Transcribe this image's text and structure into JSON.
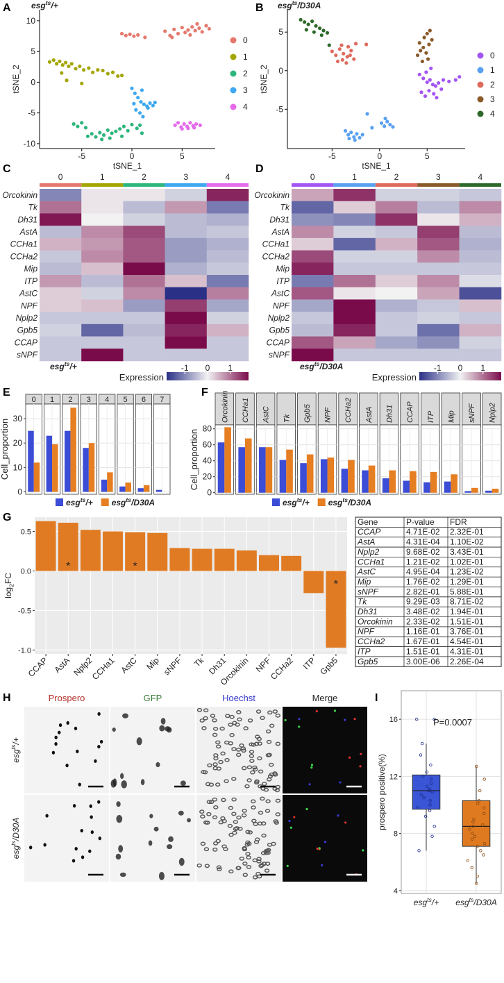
{
  "panel_labels": [
    "A",
    "B",
    "C",
    "D",
    "E",
    "F",
    "G",
    "H",
    "I"
  ],
  "chart_data": [
    {
      "type": "scatter",
      "title": {
        "base": "esg",
        "sup": "ts",
        "rest": "/+"
      },
      "x_label": "tSNE_1",
      "y_label": "tSNE_2",
      "xlim": [
        -9.2,
        8.3
      ],
      "ylim": [
        -10.8,
        11.8
      ],
      "xticks": [
        -5,
        0,
        5
      ],
      "yticks": [
        -10,
        -5,
        0,
        5,
        10
      ],
      "legend": "right",
      "series": [
        {
          "name": "0",
          "color": "#E5786D",
          "x": [
            -1.0,
            -0.6,
            -0.2,
            0.2,
            0.6,
            1.3,
            3.3,
            3.8,
            4.2,
            4.6,
            5.0,
            5.3,
            5.6,
            6.0,
            6.3,
            6.7,
            7.0,
            7.4,
            7.7,
            4.0,
            5.8,
            6.5
          ],
          "y": [
            7.9,
            7.6,
            7.8,
            7.5,
            7.7,
            7.3,
            8.3,
            7.6,
            8.6,
            7.9,
            8.9,
            8.1,
            8.5,
            9.0,
            8.4,
            8.8,
            8.2,
            9.2,
            8.7,
            7.3,
            7.7,
            9.5
          ]
        },
        {
          "name": "1",
          "color": "#A3A500",
          "x": [
            -8.2,
            -7.8,
            -7.5,
            -7.2,
            -6.9,
            -6.6,
            -6.3,
            -6.0,
            -5.6,
            -5.2,
            -4.8,
            -4.3,
            -3.9,
            -3.4,
            -2.9,
            -2.4,
            -1.9,
            -1.4,
            -1.0,
            -7.0,
            -6.5,
            -5.0
          ],
          "y": [
            3.3,
            3.6,
            3.0,
            3.4,
            2.8,
            3.2,
            2.6,
            3.0,
            2.2,
            2.6,
            2.0,
            2.3,
            1.6,
            2.0,
            1.9,
            1.4,
            1.6,
            1.0,
            1.1,
            1.5,
            0.3,
            -0.2
          ]
        },
        {
          "name": "2",
          "color": "#2DB67C",
          "x": [
            -5.8,
            -5.4,
            -5.0,
            -4.6,
            -4.4,
            -4.0,
            -3.6,
            -3.2,
            -2.8,
            -2.4,
            -2.0,
            -1.6,
            -1.2,
            -0.8,
            -0.4,
            0.0,
            0.5,
            1.0,
            -3.0,
            -2.2,
            -1.0,
            0.8
          ],
          "y": [
            -6.8,
            -7.2,
            -6.6,
            -7.4,
            -8.8,
            -8.4,
            -8.9,
            -8.2,
            -8.6,
            -7.8,
            -8.3,
            -8.0,
            -7.6,
            -7.2,
            -7.9,
            -6.9,
            -7.5,
            -8.3,
            -9.3,
            -9.1,
            -8.8,
            -7.0
          ]
        },
        {
          "name": "3",
          "color": "#3DA8F0",
          "x": [
            0.0,
            0.3,
            0.6,
            0.9,
            1.2,
            1.5,
            1.8,
            2.1,
            0.4,
            0.8,
            1.1,
            1.6,
            0.2,
            1.0,
            2.3
          ],
          "y": [
            -1.0,
            -1.8,
            -2.5,
            -3.2,
            -3.6,
            -3.9,
            -3.4,
            -3.8,
            -4.5,
            -5.0,
            -5.6,
            -4.2,
            -3.5,
            -1.3,
            -3.3
          ]
        },
        {
          "name": "4",
          "color": "#E46AEB",
          "x": [
            4.3,
            4.6,
            4.9,
            5.2,
            5.5,
            5.8,
            6.1,
            6.4,
            6.8,
            5.0,
            5.6,
            6.2
          ],
          "y": [
            -7.0,
            -6.6,
            -7.3,
            -6.8,
            -7.2,
            -6.6,
            -7.1,
            -6.8,
            -7.0,
            -7.6,
            -7.5,
            -7.4
          ]
        }
      ]
    },
    {
      "type": "scatter",
      "title": {
        "base": "esg",
        "sup": "ts",
        "rest": "/D30A"
      },
      "x_label": "tSNE_1",
      "y_label": "tSNE_2",
      "xlim": [
        -9.7,
        9.0
      ],
      "ylim": [
        -10.1,
        7.9
      ],
      "xticks": [
        -5,
        0,
        5
      ],
      "yticks": [
        -5,
        0,
        5
      ],
      "legend": "right",
      "series": [
        {
          "name": "0",
          "color": "#A355F4",
          "x": [
            4.2,
            4.6,
            5.0,
            5.3,
            5.6,
            5.9,
            6.2,
            6.5,
            4.4,
            4.8,
            5.2,
            5.7,
            6.0,
            4.9,
            5.4,
            6.7,
            7.3,
            8.0,
            8.4
          ],
          "y": [
            -0.5,
            -1.0,
            -1.5,
            -1.2,
            -1.8,
            -2.0,
            -1.6,
            -2.4,
            -2.8,
            -3.3,
            -2.6,
            -3.0,
            -3.5,
            -0.2,
            0.3,
            -1.2,
            -1.4,
            -1.2,
            -0.8
          ]
        },
        {
          "name": "1",
          "color": "#5AA0F2",
          "x": [
            -3.6,
            -3.3,
            -3.0,
            -2.7,
            -2.4,
            -2.1,
            -1.8,
            -3.2,
            -2.6,
            0.2,
            0.5,
            0.8,
            1.1,
            1.4,
            0.6,
            -0.8,
            -1.3
          ],
          "y": [
            -7.8,
            -8.3,
            -8.0,
            -8.6,
            -8.2,
            -8.7,
            -8.3,
            -8.8,
            -9.0,
            -6.8,
            -7.2,
            -6.6,
            -7.0,
            -7.3,
            -6.2,
            -7.4,
            -5.6
          ]
        },
        {
          "name": "2",
          "color": "#DE6A5C",
          "x": [
            -5.0,
            -4.6,
            -4.2,
            -3.8,
            -3.4,
            -3.0,
            -2.7,
            -4.4,
            -3.9,
            -3.5,
            -3.1,
            -4.0,
            -3.3,
            -2.5,
            -1.4
          ],
          "y": [
            2.5,
            2.0,
            2.8,
            2.2,
            1.8,
            2.6,
            1.5,
            1.2,
            1.4,
            1.0,
            2.0,
            3.3,
            3.1,
            3.5,
            3.4
          ]
        },
        {
          "name": "3",
          "color": "#8A5A28",
          "x": [
            4.0,
            4.3,
            4.6,
            4.9,
            5.2,
            5.5,
            4.2,
            4.7,
            5.0,
            5.3,
            4.5,
            5.1
          ],
          "y": [
            2.0,
            2.6,
            3.0,
            2.3,
            3.4,
            4.0,
            3.6,
            4.3,
            4.8,
            5.2,
            1.2,
            1.5
          ]
        },
        {
          "name": "4",
          "color": "#2D6A2A",
          "x": [
            -8.3,
            -7.9,
            -7.5,
            -7.1,
            -6.7,
            -6.3,
            -5.9,
            -5.5,
            -7.7,
            -6.9,
            -6.1,
            -5.3
          ],
          "y": [
            6.6,
            6.3,
            6.0,
            6.4,
            5.8,
            5.5,
            5.2,
            4.9,
            5.3,
            5.0,
            4.6,
            3.3
          ]
        }
      ]
    },
    {
      "type": "heatmap",
      "caption": {
        "base": "esg",
        "sup": "ts",
        "rest": "/+"
      },
      "columns": [
        "0",
        "1",
        "2",
        "3",
        "4"
      ],
      "column_colors": [
        "#E5786D",
        "#A3A500",
        "#2DB67C",
        "#3DA8F0",
        "#E46AEB"
      ],
      "rows": [
        "Orcokinin",
        "Tk",
        "Dh31",
        "AstA",
        "CCHa1",
        "CCHa2",
        "Mip",
        "ITP",
        "AstC",
        "NPF",
        "Nplp2",
        "Gpb5",
        "CCAP",
        "sNPF"
      ],
      "values": [
        [
          -1.0,
          0.1,
          0.1,
          -0.3,
          1.6
        ],
        [
          1.0,
          0.1,
          -0.5,
          0.7,
          -1.1
        ],
        [
          1.7,
          0.0,
          -0.3,
          -0.5,
          -0.6
        ],
        [
          -0.5,
          0.8,
          1.3,
          -0.5,
          -0.4
        ],
        [
          0.5,
          0.7,
          1.2,
          -0.8,
          -0.6
        ],
        [
          -0.4,
          0.8,
          1.2,
          -0.8,
          -0.5
        ],
        [
          -0.5,
          0.4,
          1.8,
          -0.6,
          -0.4
        ],
        [
          0.7,
          -0.5,
          1.0,
          0.4,
          -1.1
        ],
        [
          0.3,
          -0.3,
          0.8,
          -1.9,
          0.9
        ],
        [
          0.3,
          0.4,
          -0.8,
          1.4,
          -0.7
        ],
        [
          -0.4,
          -0.4,
          -0.4,
          1.8,
          -0.3
        ],
        [
          -0.3,
          -1.3,
          -0.5,
          1.6,
          0.5
        ],
        [
          -0.4,
          -0.4,
          -0.4,
          1.8,
          -0.4
        ],
        [
          -0.4,
          1.8,
          -0.4,
          -0.4,
          -0.4
        ]
      ],
      "colorbar": {
        "title": "Expression",
        "clim": [
          -1.8,
          1.8
        ],
        "ticks": [
          -1,
          0,
          1
        ],
        "colors": [
          "#2B3087",
          "#F2F2F2",
          "#7A0B4B"
        ]
      }
    },
    {
      "type": "heatmap",
      "caption": {
        "base": "esg",
        "sup": "ts",
        "rest": "/D30A"
      },
      "columns": [
        "0",
        "1",
        "2",
        "3",
        "4"
      ],
      "column_colors": [
        "#A355F4",
        "#5AA0F2",
        "#DE6A5C",
        "#8A5A28",
        "#2D6A2A"
      ],
      "rows": [
        "Orcokinin",
        "Tk",
        "Dh31",
        "AstA",
        "CCHa1",
        "CCHa2",
        "Mip",
        "ITP",
        "AstC",
        "NPF",
        "Nplp2",
        "Gpb5",
        "CCAP",
        "sNPF"
      ],
      "values": [
        [
          0.6,
          1.5,
          -0.3,
          -0.3,
          -0.4
        ],
        [
          -1.3,
          0.3,
          0.9,
          -0.5,
          0.8
        ],
        [
          -0.9,
          -1.0,
          1.5,
          0.1,
          0.5
        ],
        [
          0.8,
          -0.3,
          -0.4,
          1.4,
          -0.5
        ],
        [
          0.3,
          -1.3,
          0.5,
          1.2,
          -0.6
        ],
        [
          1.3,
          -0.3,
          -0.3,
          0.8,
          -0.5
        ],
        [
          1.6,
          -0.4,
          -0.4,
          -0.4,
          -0.4
        ],
        [
          -1.1,
          1.0,
          0.3,
          0.8,
          -0.2
        ],
        [
          1.2,
          0.1,
          0.0,
          0.6,
          -1.5
        ],
        [
          -0.7,
          1.8,
          -0.6,
          -0.4,
          0.4
        ],
        [
          -0.4,
          1.8,
          -0.4,
          -0.3,
          -0.4
        ],
        [
          -0.5,
          1.6,
          -0.4,
          -1.2,
          0.5
        ],
        [
          1.2,
          0.6,
          -0.7,
          -0.9,
          -0.3
        ],
        [
          1.8,
          -0.4,
          -0.4,
          -0.4,
          -0.4
        ]
      ],
      "colorbar": {
        "title": "Expression",
        "clim": [
          -1.8,
          1.8
        ],
        "ticks": [
          -1,
          0,
          1
        ],
        "colors": [
          "#2B3087",
          "#F2F2F2",
          "#7A0B4B"
        ]
      }
    },
    {
      "type": "bar",
      "facet": true,
      "y_label": "Cell_proportion",
      "categories": [
        "0",
        "1",
        "2",
        "3",
        "4",
        "5",
        "6",
        "7"
      ],
      "ylim": [
        -1,
        36
      ],
      "yticks": [
        0,
        10,
        20,
        30
      ],
      "grid": true,
      "legend": "bottom",
      "series": [
        {
          "name": {
            "base": "esg",
            "sup": "ts",
            "rest": "/+"
          },
          "color": "#3B4CD6",
          "values": [
            25,
            23,
            25,
            18,
            5,
            2.2,
            1.5,
            0.8
          ]
        },
        {
          "name": {
            "base": "esg",
            "sup": "ts",
            "rest": "/D30A"
          },
          "color": "#E67E22",
          "values": [
            12,
            19.5,
            34.5,
            20,
            8,
            3.8,
            2.7,
            null
          ]
        }
      ]
    },
    {
      "type": "bar",
      "facet": true,
      "y_label": "Cell_proportion",
      "categories": [
        "Orcokinin",
        "CCHa1",
        "AstC",
        "Tk",
        "Gpb5",
        "NPF",
        "CCHa2",
        "AstA",
        "Dh31",
        "CCAP",
        "ITP",
        "Mip",
        "sNPF",
        "Nplp2"
      ],
      "ylim": [
        -2,
        85
      ],
      "yticks": [
        0,
        20,
        40,
        60,
        80
      ],
      "grid": true,
      "legend": "bottom",
      "series": [
        {
          "name": {
            "base": "esg",
            "sup": "ts",
            "rest": "/+"
          },
          "color": "#3B4CD6",
          "values": [
            63,
            57,
            57,
            41,
            37,
            42,
            30,
            28,
            18,
            15,
            13,
            14,
            2,
            2.5
          ]
        },
        {
          "name": {
            "base": "esg",
            "sup": "ts",
            "rest": "/D30A"
          },
          "color": "#E67E22",
          "values": [
            82,
            68,
            57,
            54,
            48,
            44,
            41,
            34,
            28,
            27,
            26,
            23,
            6,
            5
          ]
        }
      ]
    },
    {
      "type": "bar",
      "categories": [
        "CCAP",
        "AstA",
        "Nplp2",
        "CCHa1",
        "AstC",
        "Mip",
        "sNPF",
        "Tk",
        "Dh31",
        "Orcokinin",
        "NPF",
        "CCHa2",
        "ITP",
        "Gpb5"
      ],
      "values": [
        0.63,
        0.61,
        0.52,
        0.5,
        0.49,
        0.48,
        0.29,
        0.28,
        0.28,
        0.26,
        0.2,
        0.19,
        -0.28,
        -0.97
      ],
      "stars": [
        null,
        "*",
        null,
        null,
        "*",
        null,
        null,
        null,
        null,
        null,
        null,
        null,
        null,
        "*"
      ],
      "color": "#E07B24",
      "y_label": {
        "base": "log",
        "sub": "2",
        "rest": "FC"
      },
      "ylim": [
        -1.05,
        0.68
      ],
      "yticks": [
        {
          "value": -1,
          "label": "-1.0"
        },
        -0.5,
        {
          "value": 0,
          "label": "0.0"
        },
        0.5
      ],
      "grid": true
    },
    {
      "type": "box",
      "categories": [
        {
          "base": "esg",
          "sup": "ts",
          "rest": "/+"
        },
        {
          "base": "esg",
          "sup": "ts",
          "rest": "/D30A"
        }
      ],
      "y_label": "prospero positive(%)",
      "annotation": "P=0.0007",
      "ylim": [
        3.8,
        18
      ],
      "yticks": [
        4,
        8,
        12,
        16
      ],
      "grid": true,
      "boxes": [
        {
          "color": "#3A55D6",
          "min": 6.8,
          "q1": 9.7,
          "median": 11.0,
          "q3": 12.1,
          "max": 14.3,
          "points": [
            16,
            16,
            14.3,
            13.5,
            12.8,
            12.3,
            12.0,
            11.8,
            11.5,
            11.3,
            11.1,
            11.0,
            10.9,
            10.7,
            10.5,
            10.3,
            10.0,
            9.8,
            9.6,
            9.2,
            8.5,
            7.8,
            6.8
          ]
        },
        {
          "color": "#E07A20",
          "min": 4.5,
          "q1": 7.1,
          "median": 8.5,
          "q3": 10.3,
          "max": 12.7,
          "points": [
            12.7,
            11.8,
            11.0,
            10.3,
            10.1,
            9.8,
            9.4,
            9.0,
            8.8,
            8.6,
            8.5,
            8.3,
            8.0,
            7.8,
            7.6,
            7.3,
            7.1,
            6.8,
            6.5,
            6.1,
            5.6,
            5.0,
            4.5
          ]
        }
      ]
    }
  ],
  "table": {
    "columns": [
      "Gene",
      "P-value",
      "FDR"
    ],
    "rows": [
      [
        "CCAP",
        "4.71E-02",
        "2.32E-01"
      ],
      [
        "AstA",
        "4.31E-04",
        "1.10E-02"
      ],
      [
        "Nplp2",
        "9.68E-02",
        "3.43E-01"
      ],
      [
        "CCHa1",
        "1.21E-02",
        "1.02E-01"
      ],
      [
        "AstC",
        "4.95E-04",
        "1.23E-02"
      ],
      [
        "Mip",
        "1.76E-02",
        "1.29E-01"
      ],
      [
        "sNPF",
        "2.82E-01",
        "5.88E-01"
      ],
      [
        "Tk",
        "9.29E-03",
        "8.71E-02"
      ],
      [
        "Dh31",
        "3.48E-02",
        "1.94E-01"
      ],
      [
        "Orcokinin",
        "2.33E-02",
        "1.51E-01"
      ],
      [
        "NPF",
        "1.16E-01",
        "3.76E-01"
      ],
      [
        "CCHa2",
        "1.67E-01",
        "4.54E-01"
      ],
      [
        "ITP",
        "1.51E-01",
        "4.31E-01"
      ],
      [
        "Gpb5",
        "3.00E-06",
        "2.26E-04"
      ]
    ]
  },
  "micrographs": {
    "channels": [
      "Prospero",
      "GFP",
      "Hoechst",
      "Merge"
    ],
    "channel_colors": [
      "#B5302A",
      "#3A7D3A",
      "#2F33C8",
      "#222222"
    ],
    "rows": [
      {
        "base": "esg",
        "sup": "ts",
        "rest": "/+"
      },
      {
        "base": "esg",
        "sup": "ts",
        "rest": "/D30A"
      }
    ]
  }
}
